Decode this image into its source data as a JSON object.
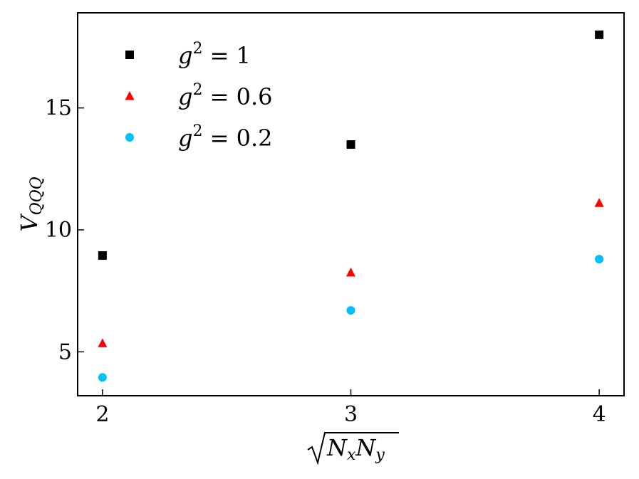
{
  "chart_data": {
    "type": "scatter",
    "x": [
      2,
      3,
      4
    ],
    "series": [
      {
        "name": "g² = 1",
        "name_base": "g",
        "name_sup": "2",
        "name_rest": " = 1",
        "marker": "square",
        "color": "#000000",
        "values": [
          8.95,
          13.5,
          18.0
        ]
      },
      {
        "name": "g² = 0.6",
        "name_base": "g",
        "name_sup": "2",
        "name_rest": " = 0.6",
        "marker": "triangle",
        "color": "#ff0000",
        "values": [
          5.35,
          8.25,
          11.1
        ]
      },
      {
        "name": "g² = 0.2",
        "name_base": "g",
        "name_sup": "2",
        "name_rest": " = 0.2",
        "marker": "circle",
        "color": "#00bfff",
        "values": [
          3.95,
          6.7,
          8.8
        ]
      }
    ],
    "xlabel": "√NₓNᵧ",
    "xlabel_parts": {
      "n1": "N",
      "s1": "x",
      "n2": "N",
      "s2": "y"
    },
    "ylabel": "V_QQQ",
    "ylabel_parts": {
      "base": "V",
      "sub": "QQQ"
    },
    "xlim": [
      1.9,
      4.1
    ],
    "ylim": [
      3.2,
      18.9
    ],
    "xticks": [
      2,
      3,
      4
    ],
    "yticks": [
      5,
      10,
      15
    ],
    "xtick_labels": [
      "2",
      "3",
      "4"
    ],
    "ytick_labels": [
      "5",
      "10",
      "15"
    ],
    "grid": false,
    "legend_position": "top-left"
  }
}
